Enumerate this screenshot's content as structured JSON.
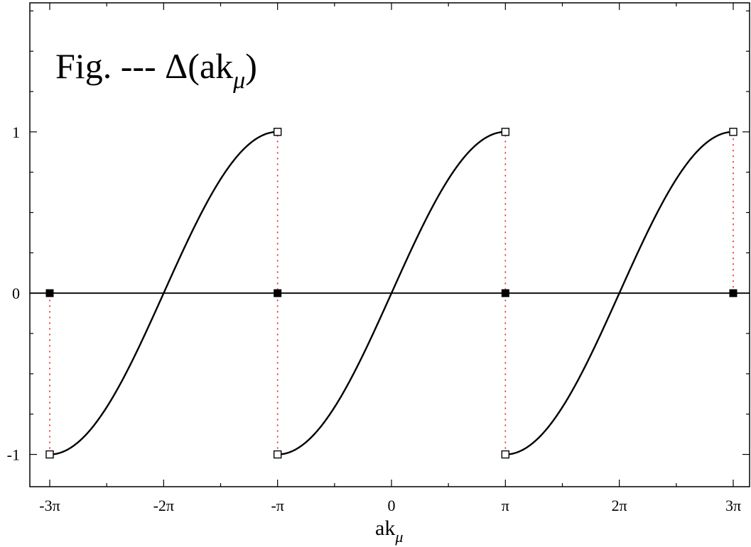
{
  "chart_data": {
    "type": "line",
    "title": {
      "prefix": "Fig. --- Δ(ak",
      "subscript": "μ",
      "suffix": ")"
    },
    "xlabel": {
      "main": "ak",
      "subscript": "μ"
    },
    "ylabel": "",
    "xlim": [
      -9.42478,
      9.42478
    ],
    "ylim": [
      -1.2,
      1.8
    ],
    "grid": false,
    "x_ticks": [
      {
        "value": -9.42478,
        "label": "-3π"
      },
      {
        "value": -6.28319,
        "label": "-2π"
      },
      {
        "value": -3.14159,
        "label": "-π"
      },
      {
        "value": 0,
        "label": "0"
      },
      {
        "value": 3.14159,
        "label": "π"
      },
      {
        "value": 6.28319,
        "label": "2π"
      },
      {
        "value": 9.42478,
        "label": "3π"
      }
    ],
    "y_ticks": [
      {
        "value": -1,
        "label": "-1"
      },
      {
        "value": 0,
        "label": "0"
      },
      {
        "value": 1,
        "label": "1"
      }
    ],
    "series": [
      {
        "function": "sin(x/2)",
        "segments": [
          {
            "x_start": -9.42478,
            "x_end": -3.14159
          },
          {
            "x_start": -3.14159,
            "x_end": 3.14159
          },
          {
            "x_start": 3.14159,
            "x_end": 9.42478
          }
        ]
      }
    ],
    "markers": {
      "open_squares": [
        {
          "x": -9.42478,
          "y": -1
        },
        {
          "x": -3.14159,
          "y": 1
        },
        {
          "x": -3.14159,
          "y": -1
        },
        {
          "x": 3.14159,
          "y": 1
        },
        {
          "x": 3.14159,
          "y": -1
        },
        {
          "x": 9.42478,
          "y": 1
        }
      ],
      "filled_squares": [
        {
          "x": -9.42478,
          "y": 0
        },
        {
          "x": -3.14159,
          "y": 0
        },
        {
          "x": 3.14159,
          "y": 0
        },
        {
          "x": 9.42478,
          "y": 0
        }
      ]
    },
    "dotted_connectors": [
      {
        "x": -9.42478,
        "y_from": -1,
        "y_to": 0
      },
      {
        "x": -3.14159,
        "y_from": -1,
        "y_to": 1
      },
      {
        "x": 3.14159,
        "y_from": -1,
        "y_to": 1
      },
      {
        "x": 9.42478,
        "y_from": 0,
        "y_to": 1
      }
    ],
    "zero_line": true,
    "colors": {
      "curve": "#000000",
      "connector": "#e8141c",
      "axis": "#000000"
    }
  }
}
